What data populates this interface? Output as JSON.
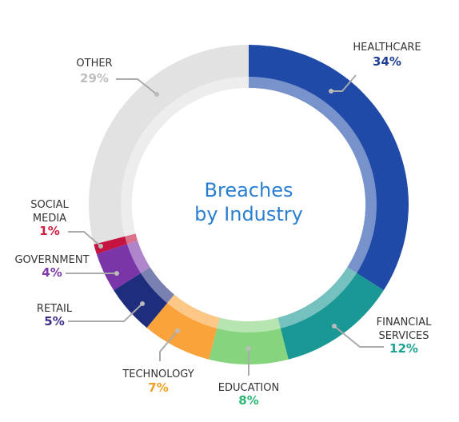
{
  "chart_data": {
    "type": "donut",
    "title": "Breaches by Industry",
    "categories": [
      "HEALTHCARE",
      "FINANCIAL SERVICES",
      "EDUCATION",
      "TECHNOLOGY",
      "RETAIL",
      "GOVERNMENT",
      "SOCIAL MEDIA",
      "OTHER"
    ],
    "values": [
      34,
      12,
      8,
      7,
      5,
      4,
      1,
      29
    ],
    "value_labels": [
      "34%",
      "12%",
      "8%",
      "7%",
      "5%",
      "4%",
      "1%",
      "29%"
    ],
    "colors": [
      "#1f4aa8",
      "#1a9896",
      "#86d47e",
      "#f9a33a",
      "#1f2e7c",
      "#7a35a8",
      "#c4143f",
      "#e2e2e2"
    ],
    "label_colors": [
      "#1f3f90",
      "#1aa391",
      "#2bb673",
      "#f0a020",
      "#3a2f8a",
      "#7b3aa8",
      "#d21f40",
      "#bdbdbd"
    ]
  }
}
